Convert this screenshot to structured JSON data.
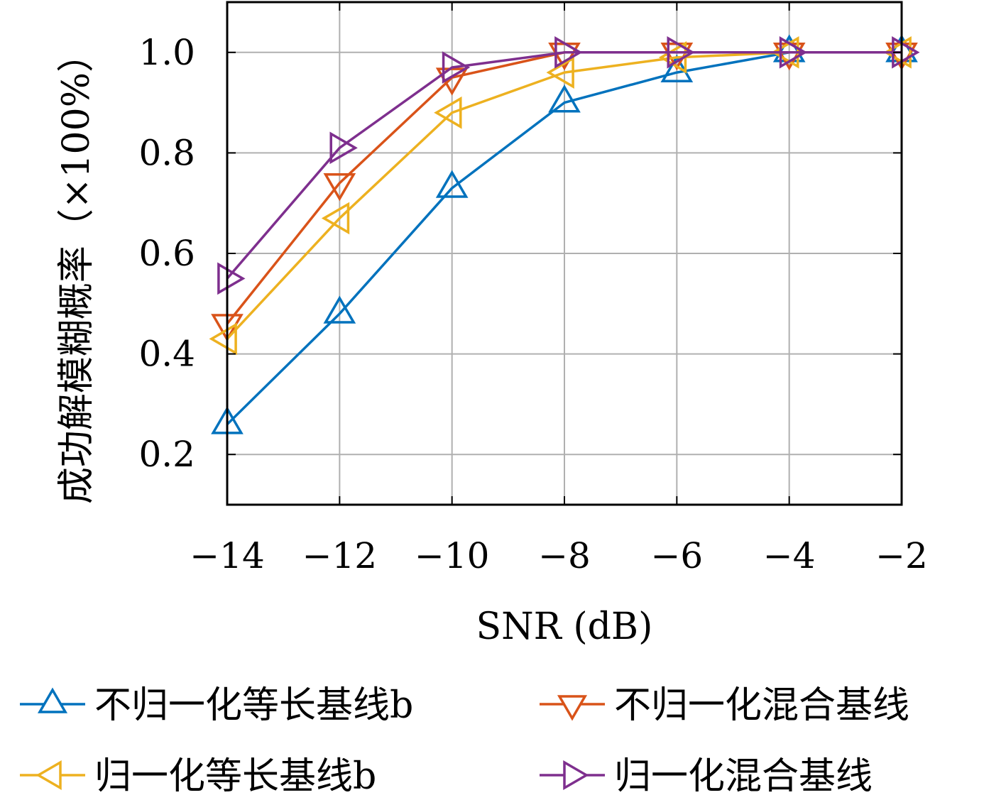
{
  "chart_data": {
    "type": "line",
    "title": "",
    "xlabel": "SNR (dB)",
    "ylabel": "成功解模糊概率（×100%）",
    "xlim": [
      -14,
      -2
    ],
    "ylim": [
      0.1,
      1.1
    ],
    "x": [
      -14,
      -12,
      -10,
      -8,
      -6,
      -4,
      -2
    ],
    "xticks": [
      -14,
      -12,
      -10,
      -8,
      -6,
      -4,
      -2
    ],
    "xtick_labels": [
      "−14",
      "−12",
      "−10",
      "−8",
      "−6",
      "−4",
      "−2"
    ],
    "yticks": [
      0.2,
      0.4,
      0.6,
      0.8,
      1.0
    ],
    "ytick_labels": [
      "0.2",
      "0.4",
      "0.6",
      "0.8",
      "1.0"
    ],
    "grid": true,
    "legend_position": "bottom",
    "series": [
      {
        "name": "不归一化等长基线b",
        "color": "#0072bd",
        "marker": "triangle-up",
        "values": [
          0.26,
          0.48,
          0.73,
          0.9,
          0.96,
          1.0,
          1.0
        ]
      },
      {
        "name": "不归一化混合基线",
        "color": "#d95319",
        "marker": "triangle-down",
        "values": [
          0.46,
          0.74,
          0.95,
          1.0,
          1.0,
          1.0,
          1.0
        ]
      },
      {
        "name": "归一化等长基线b",
        "color": "#edb120",
        "marker": "triangle-left",
        "values": [
          0.43,
          0.67,
          0.88,
          0.96,
          0.99,
          1.0,
          1.0
        ]
      },
      {
        "name": "归一化混合基线",
        "color": "#7e2f8e",
        "marker": "triangle-right",
        "values": [
          0.55,
          0.81,
          0.97,
          1.0,
          1.0,
          1.0,
          1.0
        ]
      }
    ]
  }
}
